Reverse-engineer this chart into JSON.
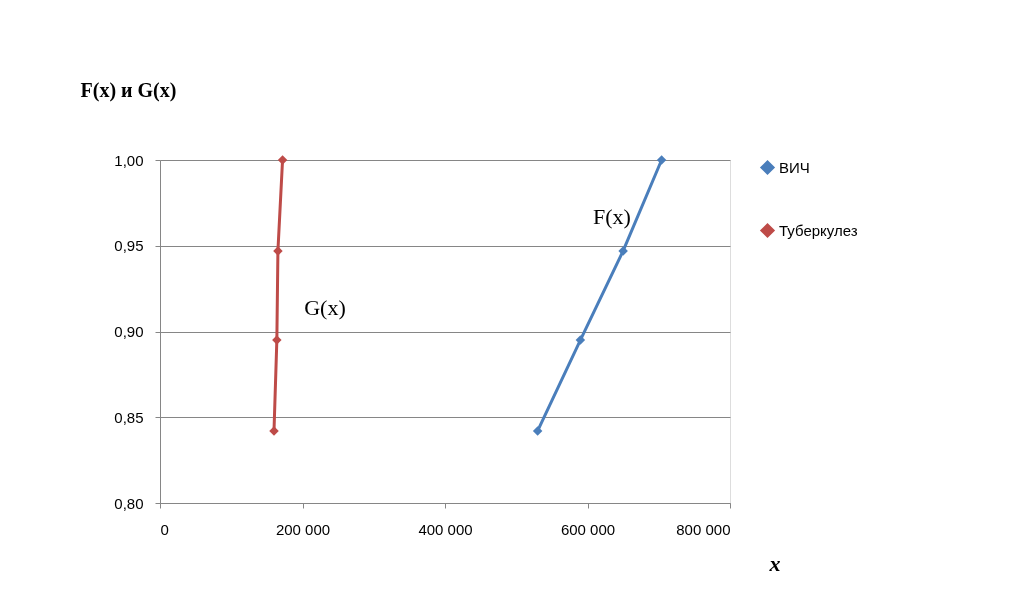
{
  "chart_data": {
    "type": "line",
    "ylabel": "F(x)  и G(x)",
    "xlabel": "x",
    "series": [
      {
        "name": "ВИЧ",
        "color": "#4a7ebb",
        "x": [
          530000,
          590000,
          650000,
          704000
        ],
        "values": [
          0.842,
          0.895,
          0.947,
          1.0
        ]
      },
      {
        "name": "Туберкулез",
        "color": "#be4b48",
        "x": [
          160000,
          164000,
          165500,
          172000
        ],
        "values": [
          0.842,
          0.895,
          0.947,
          1.0
        ]
      }
    ],
    "xlim": [
      0,
      800000
    ],
    "xticks": [
      0,
      {
        "value": 200000,
        "label": "200 000"
      },
      {
        "value": 400000,
        "label": "400 000"
      },
      {
        "value": 600000,
        "label": "600 000"
      },
      {
        "value": 800000,
        "label": "800 000"
      }
    ],
    "ylim": [
      0.8,
      1.0
    ],
    "yticks": [
      {
        "value": 0.8,
        "label": "0,80"
      },
      {
        "value": 0.85,
        "label": "0,85"
      },
      {
        "value": 0.9,
        "label": "0,90"
      },
      {
        "value": 0.95,
        "label": "0,95"
      },
      {
        "value": 1.0,
        "label": "1,00"
      }
    ],
    "annotations": [
      "F(x)",
      "G(x)"
    ],
    "grid": "y",
    "legend": "right",
    "marker": "diamond",
    "line_style": "solid"
  }
}
